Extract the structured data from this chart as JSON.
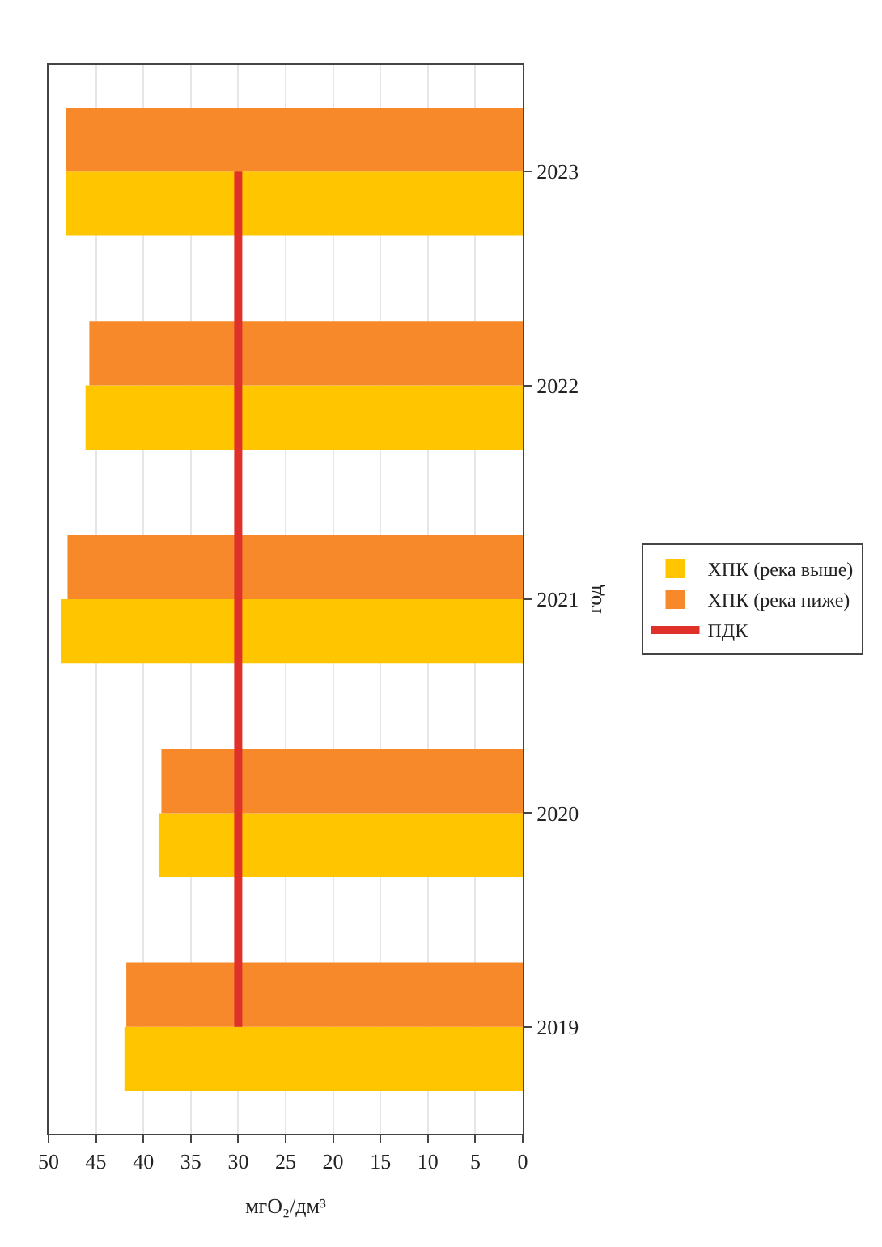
{
  "chart_data": {
    "type": "bar",
    "orientation": "horizontal",
    "xlabel": "мгO₂/дм³",
    "ylabel": "год",
    "categories": [
      "2023",
      "2022",
      "2021",
      "2020",
      "2019"
    ],
    "series": [
      {
        "name": "ХПК (река выше)",
        "color": "#ffc600",
        "values": [
          48.2,
          46.1,
          48.7,
          38.4,
          42.0
        ]
      },
      {
        "name": "ХПК (река ниже)",
        "color": "#f7892a",
        "values": [
          48.2,
          45.7,
          48.0,
          38.1,
          41.8
        ]
      },
      {
        "name": "ПДК",
        "type": "line",
        "color": "#e0302a",
        "values": [
          30,
          30,
          30,
          30,
          30
        ]
      }
    ],
    "xlim": [
      50,
      0
    ],
    "xticks": [
      0,
      5,
      10,
      15,
      20,
      25,
      30,
      35,
      40,
      45,
      50
    ],
    "grid": "x",
    "legend": "right",
    "marker": "none",
    "line_style": "solid"
  }
}
